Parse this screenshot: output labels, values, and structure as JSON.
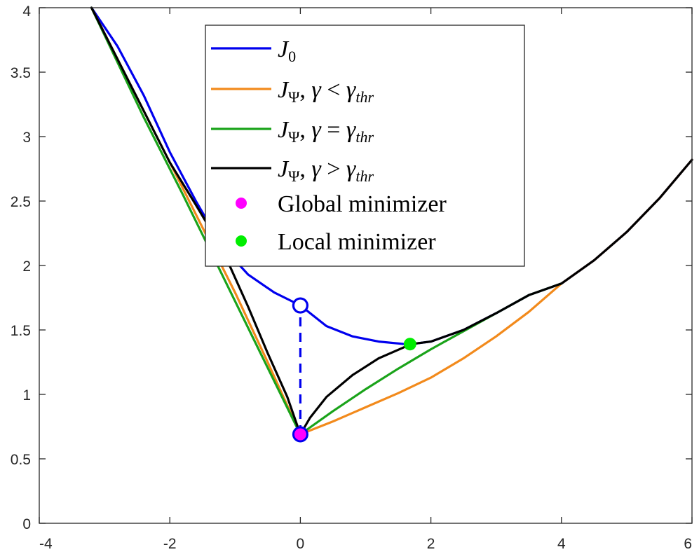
{
  "chart_data": {
    "type": "line",
    "title": "",
    "xlabel": "",
    "ylabel": "",
    "xlim": [
      -4,
      6
    ],
    "ylim": [
      0,
      4
    ],
    "xticks": [
      -4,
      -2,
      0,
      2,
      4,
      6
    ],
    "yticks": [
      0,
      0.5,
      1,
      1.5,
      2,
      2.5,
      3,
      3.5,
      4
    ],
    "xtick_labels": [
      "-4",
      "-2",
      "0",
      "2",
      "4",
      "6"
    ],
    "ytick_labels": [
      "0",
      "0.5",
      "1",
      "1.5",
      "2",
      "2.5",
      "3",
      "3.5",
      "4"
    ],
    "grid": false,
    "legend_position": "top-center",
    "series": [
      {
        "name": "J_0",
        "color": "#0000ee",
        "x": [
          -3.2,
          -2.8,
          -2.4,
          -2.0,
          -1.6,
          -1.2,
          -0.8,
          -0.4,
          0.0,
          0.4,
          0.8,
          1.2,
          1.6,
          1.7,
          2.0,
          2.5,
          3.0,
          3.5,
          4.0,
          4.5,
          5.0,
          5.5,
          6.0
        ],
        "y": [
          4.0,
          3.7,
          3.32,
          2.88,
          2.5,
          2.15,
          1.93,
          1.79,
          1.69,
          1.53,
          1.45,
          1.41,
          1.39,
          1.39,
          1.41,
          1.5,
          1.63,
          1.77,
          1.86,
          2.04,
          2.26,
          2.52,
          2.82
        ]
      },
      {
        "name": "J_Ψ, γ < γ_thr",
        "color": "#f28a1c",
        "x": [
          -3.2,
          -2.0,
          -1.0,
          -0.5,
          0.0,
          0.5,
          1.0,
          1.5,
          2.0,
          2.5,
          3.0,
          3.5,
          4.0,
          4.5,
          5.0,
          5.5,
          6.0
        ],
        "y": [
          4.0,
          2.8,
          1.79,
          1.25,
          0.69,
          0.79,
          0.9,
          1.01,
          1.13,
          1.28,
          1.45,
          1.64,
          1.86,
          2.04,
          2.26,
          2.52,
          2.82
        ]
      },
      {
        "name": "J_Ψ, γ = γ_thr",
        "color": "#1aa31a",
        "x": [
          -3.2,
          -2.4,
          -1.8,
          -1.2,
          -0.6,
          0.0,
          0.5,
          1.0,
          1.5,
          2.0,
          2.5,
          3.0,
          3.5,
          4.0
        ],
        "y": [
          4.0,
          3.15,
          2.55,
          1.93,
          1.31,
          0.69,
          0.87,
          1.04,
          1.2,
          1.35,
          1.49,
          1.63,
          1.77,
          1.86
        ]
      },
      {
        "name": "J_Ψ, γ > γ_thr",
        "color": "#000000",
        "x": [
          -3.2,
          -2.8,
          -2.4,
          -2.0,
          -1.6,
          -1.2,
          -0.8,
          -0.5,
          -0.2,
          0.0,
          0.15,
          0.4,
          0.8,
          1.2,
          1.7,
          2.0,
          2.5,
          3.0,
          3.5,
          4.0,
          4.5,
          5.0,
          5.5,
          6.0
        ],
        "y": [
          4.0,
          3.6,
          3.2,
          2.8,
          2.47,
          2.13,
          1.68,
          1.32,
          0.98,
          0.69,
          0.82,
          0.98,
          1.15,
          1.28,
          1.39,
          1.41,
          1.5,
          1.63,
          1.77,
          1.86,
          2.04,
          2.26,
          2.52,
          2.82
        ]
      }
    ],
    "annotations": {
      "global_minimizer": {
        "name": "Global minimizer",
        "x": 0.0,
        "y": 0.69,
        "color": "#ff00ff"
      },
      "local_minimizer": {
        "name": "Local minimizer",
        "x": 1.68,
        "y": 1.39,
        "color": "#00ee00"
      },
      "open_circle": {
        "x": 0.0,
        "y": 1.69,
        "color": "#0000ee"
      },
      "dashed_jump": {
        "x": 0.0,
        "y_from": 0.69,
        "y_to": 1.69,
        "color": "#0000ee"
      }
    }
  }
}
